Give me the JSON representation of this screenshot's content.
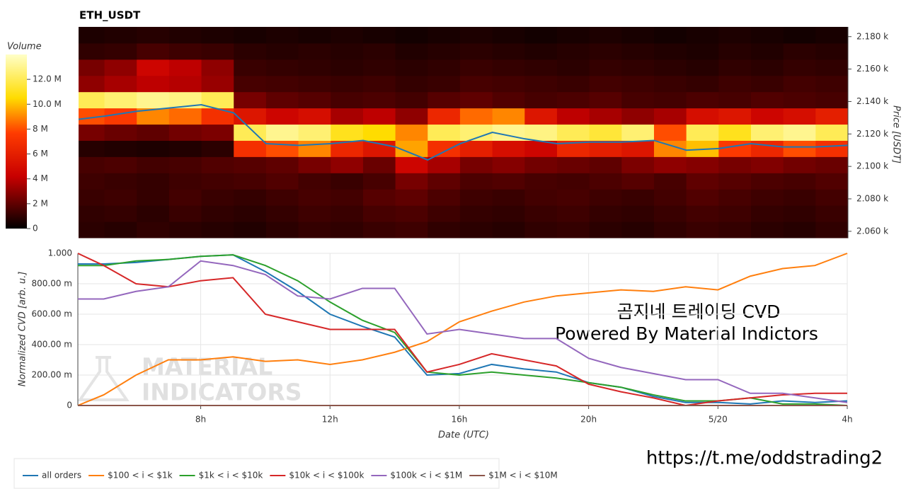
{
  "chart_data": [
    {
      "type": "heatmap",
      "title": "ETH_USDT",
      "y_label": "Price [USDT]",
      "colorbar_label": "Volume",
      "x_bins": [
        4.2,
        5,
        6,
        7,
        8,
        9,
        10,
        11,
        12,
        13,
        14,
        15,
        16,
        17,
        18,
        19,
        20,
        21,
        22,
        23,
        24,
        25,
        26,
        27,
        28
      ],
      "y_bins": [
        2056,
        2066,
        2076,
        2086,
        2096,
        2106,
        2116,
        2126,
        2136,
        2146,
        2156,
        2166,
        2176,
        2186
      ],
      "values": [
        [
          900000,
          800000,
          1000000,
          900000,
          800000,
          700000,
          900000,
          1100000,
          1000000,
          1200000,
          1300000,
          1000000,
          900000,
          800000,
          1000000,
          1100000,
          900000,
          800000,
          1000000,
          1200000,
          1100000,
          900000,
          800000,
          1000000
        ],
        [
          1000000,
          1100000,
          900000,
          1200000,
          1000000,
          900000,
          1100000,
          1300000,
          1200000,
          1500000,
          1600000,
          1300000,
          1100000,
          1000000,
          1200000,
          1300000,
          1100000,
          1000000,
          1200000,
          1400000,
          1300000,
          1100000,
          1000000,
          1200000
        ],
        [
          1200000,
          1300000,
          1100000,
          1400000,
          1200000,
          1100000,
          1300000,
          1500000,
          1400000,
          1800000,
          2000000,
          1600000,
          1300000,
          1200000,
          1400000,
          1500000,
          1300000,
          1200000,
          1400000,
          1700000,
          1500000,
          1300000,
          1200000,
          1400000
        ],
        [
          1300000,
          1200000,
          1100000,
          1300000,
          1400000,
          1500000,
          1700000,
          1400000,
          1200000,
          1500000,
          2500000,
          2000000,
          1600000,
          1700000,
          1500000,
          1400000,
          1600000,
          1800000,
          1500000,
          2000000,
          1800000,
          1600000,
          1500000,
          1700000
        ],
        [
          1500000,
          1600000,
          1400000,
          1500000,
          1700000,
          1800000,
          2000000,
          2500000,
          3000000,
          2200000,
          4500000,
          3500000,
          2500000,
          2800000,
          2400000,
          2200000,
          2000000,
          2600000,
          3000000,
          2800000,
          2500000,
          2700000,
          2400000,
          2200000
        ],
        [
          800000,
          700000,
          600000,
          700000,
          900000,
          7000000,
          8000000,
          9000000,
          6500000,
          5500000,
          9500000,
          7000000,
          6000000,
          5000000,
          4500000,
          6500000,
          6000000,
          5500000,
          9000000,
          10000000,
          7500000,
          6500000,
          8000000,
          7000000
        ],
        [
          2500000,
          2200000,
          2000000,
          2400000,
          2600000,
          12000000,
          13000000,
          12500000,
          11000000,
          10500000,
          9000000,
          12000000,
          12500000,
          13000000,
          12800000,
          12000000,
          11500000,
          12500000,
          8000000,
          12000000,
          11000000,
          12500000,
          13000000,
          12000000
        ],
        [
          8000000,
          7500000,
          9000000,
          8500000,
          7000000,
          5500000,
          4500000,
          5000000,
          3500000,
          4000000,
          3000000,
          6500000,
          8500000,
          9000000,
          5500000,
          4000000,
          3500000,
          3000000,
          3500000,
          5000000,
          5500000,
          4500000,
          5000000,
          6000000
        ],
        [
          12000000,
          12500000,
          13000000,
          12800000,
          12000000,
          2500000,
          2000000,
          1800000,
          1500000,
          1600000,
          1400000,
          1800000,
          2000000,
          1700000,
          1500000,
          1600000,
          1800000,
          1500000,
          1400000,
          1600000,
          1500000,
          1700000,
          1600000,
          1500000
        ],
        [
          3000000,
          3500000,
          4000000,
          3800000,
          3200000,
          1500000,
          1400000,
          1300000,
          1200000,
          1300000,
          1100000,
          1200000,
          1500000,
          1400000,
          1300000,
          1200000,
          1400000,
          1300000,
          1200000,
          1100000,
          1300000,
          1200000,
          1400000,
          1300000
        ],
        [
          2500000,
          3000000,
          4500000,
          4000000,
          3000000,
          1200000,
          1100000,
          1000000,
          900000,
          1000000,
          900000,
          1000000,
          1200000,
          1100000,
          1000000,
          900000,
          1100000,
          1000000,
          900000,
          800000,
          1000000,
          900000,
          1100000,
          1000000
        ],
        [
          1000000,
          1100000,
          1500000,
          1300000,
          1200000,
          900000,
          800000,
          900000,
          800000,
          900000,
          700000,
          800000,
          900000,
          800000,
          700000,
          800000,
          900000,
          800000,
          700000,
          600000,
          800000,
          700000,
          900000,
          800000
        ],
        [
          600000,
          700000,
          800000,
          700000,
          600000,
          500000,
          600000,
          500000,
          600000,
          500000,
          400000,
          500000,
          600000,
          500000,
          400000,
          500000,
          600000,
          500000,
          400000,
          500000,
          600000,
          500000,
          400000,
          500000
        ]
      ],
      "line": {
        "color": "#1f77b4",
        "values": [
          2129,
          2131,
          2134,
          2136,
          2138,
          2133,
          2114,
          2113,
          2114,
          2116,
          2112,
          2104,
          2114,
          2121,
          2117,
          2114,
          2115,
          2115,
          2116,
          2110,
          2111,
          2114,
          2112,
          2112,
          2113
        ]
      },
      "xlim": [
        4.2,
        28
      ],
      "ylim": [
        2056,
        2186
      ],
      "yticks": [
        {
          "value": 2060,
          "label": "2.060 k"
        },
        {
          "value": 2080,
          "label": "2.080 k"
        },
        {
          "value": 2100,
          "label": "2.100 k"
        },
        {
          "value": 2120,
          "label": "2.120 k"
        },
        {
          "value": 2140,
          "label": "2.140 k"
        },
        {
          "value": 2160,
          "label": "2.160 k"
        },
        {
          "value": 2180,
          "label": "2.180 k"
        }
      ],
      "clim": [
        0,
        14000000
      ],
      "cticks": [
        0,
        {
          "value": 2000000,
          "label": "2 M"
        },
        {
          "value": 4000000,
          "label": "4 M"
        },
        {
          "value": 6000000,
          "label": "6 M"
        },
        {
          "value": 8000000,
          "label": "8 M"
        },
        {
          "value": 10000000,
          "label": "10.0 M"
        },
        {
          "value": 12000000,
          "label": "12.0 M"
        }
      ]
    },
    {
      "type": "line",
      "x_label": "Date (UTC)",
      "y_label": "Normalized CVD [arb. u.]",
      "grid": true,
      "x": [
        4.2,
        5,
        6,
        7,
        8,
        9,
        10,
        11,
        12,
        13,
        14,
        15,
        16,
        17,
        18,
        19,
        20,
        21,
        22,
        23,
        24,
        25,
        26,
        27,
        28
      ],
      "series": [
        {
          "name": "all orders",
          "color": "#1f77b4",
          "values": [
            0.93,
            0.93,
            0.94,
            0.96,
            0.98,
            0.99,
            0.88,
            0.75,
            0.6,
            0.52,
            0.45,
            0.2,
            0.21,
            0.27,
            0.24,
            0.22,
            0.15,
            0.12,
            0.06,
            0.02,
            0.02,
            0.01,
            0.03,
            0.02,
            0.03
          ]
        },
        {
          "name": "$100 < i < $1k",
          "color": "#ff7f0e",
          "values": [
            0.0,
            0.07,
            0.2,
            0.3,
            0.3,
            0.32,
            0.29,
            0.3,
            0.27,
            0.3,
            0.35,
            0.42,
            0.55,
            0.62,
            0.68,
            0.72,
            0.74,
            0.76,
            0.75,
            0.78,
            0.76,
            0.85,
            0.9,
            0.92,
            1.0
          ]
        },
        {
          "name": "$1k < i < $10k",
          "color": "#2ca02c",
          "values": [
            0.92,
            0.92,
            0.95,
            0.96,
            0.98,
            0.99,
            0.92,
            0.82,
            0.68,
            0.56,
            0.48,
            0.22,
            0.2,
            0.22,
            0.2,
            0.18,
            0.15,
            0.12,
            0.07,
            0.03,
            0.03,
            0.05,
            0.01,
            0.01,
            0.0
          ]
        },
        {
          "name": "$10k < i < $100k",
          "color": "#d62728",
          "values": [
            1.0,
            0.92,
            0.8,
            0.78,
            0.82,
            0.84,
            0.6,
            0.55,
            0.5,
            0.5,
            0.5,
            0.22,
            0.27,
            0.34,
            0.3,
            0.26,
            0.14,
            0.09,
            0.05,
            0.0,
            0.03,
            0.05,
            0.07,
            0.08,
            0.08
          ]
        },
        {
          "name": "$100k < i < $1M",
          "color": "#9467bd",
          "values": [
            0.7,
            0.7,
            0.75,
            0.78,
            0.95,
            0.92,
            0.86,
            0.72,
            0.7,
            0.77,
            0.77,
            0.47,
            0.5,
            0.47,
            0.44,
            0.44,
            0.31,
            0.25,
            0.21,
            0.17,
            0.17,
            0.08,
            0.08,
            0.05,
            0.02
          ]
        },
        {
          "name": "$1M < i < $10M",
          "color": "#8c564b",
          "values": [
            0,
            0,
            0,
            0,
            0,
            0,
            0,
            0,
            0,
            0,
            0,
            0,
            0,
            0,
            0,
            0,
            0,
            0,
            0,
            0,
            0,
            0,
            0,
            0,
            0
          ]
        }
      ],
      "xlim": [
        4.2,
        28
      ],
      "ylim": [
        0,
        1
      ],
      "xticks": [
        {
          "value": 8,
          "label": "8h"
        },
        {
          "value": 12,
          "label": "12h"
        },
        {
          "value": 16,
          "label": "16h"
        },
        {
          "value": 20,
          "label": "20h"
        },
        {
          "value": 24,
          "label": "5/20"
        },
        {
          "value": 28,
          "label": "4h"
        }
      ],
      "yticks": [
        0,
        {
          "value": 0.2,
          "label": "200.00 m"
        },
        {
          "value": 0.4,
          "label": "400.00 m"
        },
        {
          "value": 0.6,
          "label": "600.00 m"
        },
        {
          "value": 0.8,
          "label": "800.00 m"
        },
        {
          "value": 1,
          "label": "1.000"
        }
      ]
    }
  ],
  "watermark": [
    "MATERIAL",
    "INDICATORS"
  ],
  "annotations": [
    "곰지네 트레이딩 CVD",
    "Powered By Material Indictors",
    "https://t.me/oddstrading2"
  ]
}
